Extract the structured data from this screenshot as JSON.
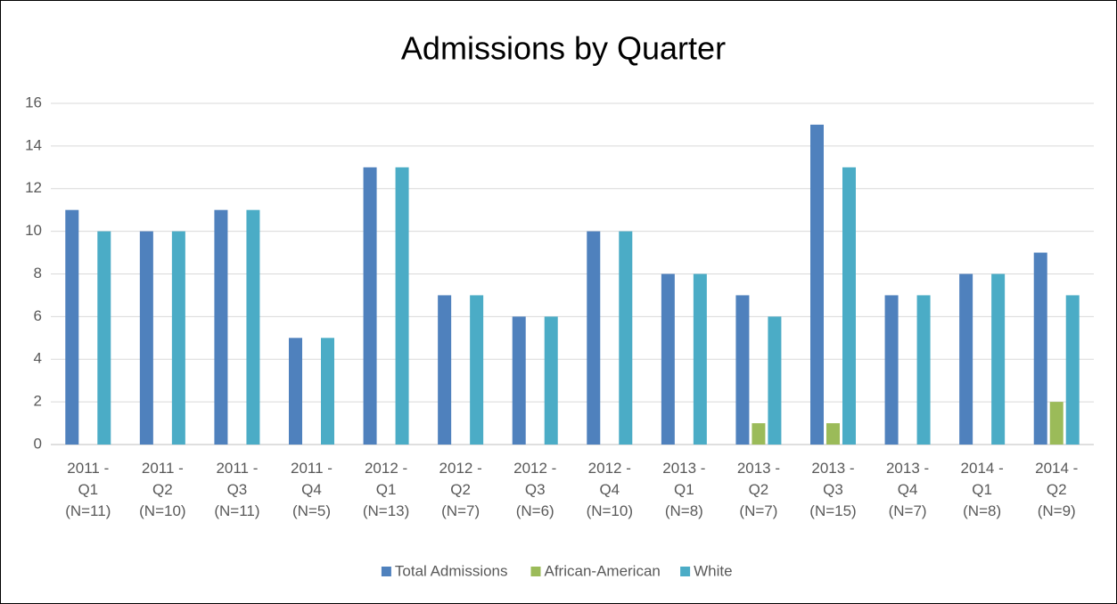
{
  "chart_data": {
    "type": "bar",
    "title": "Admissions by Quarter",
    "categories": [
      "2011 - Q1 (N=11)",
      "2011 - Q2 (N=10)",
      "2011 - Q3 (N=11)",
      "2011 - Q4 (N=5)",
      "2012 - Q1 (N=13)",
      "2012 - Q2 (N=7)",
      "2012 - Q3 (N=6)",
      "2012 - Q4 (N=10)",
      "2013 - Q1 (N=8)",
      "2013 - Q2 (N=7)",
      "2013 - Q3 (N=15)",
      "2013 - Q4 (N=7)",
      "2014 - Q1 (N=8)",
      "2014 - Q2 (N=9)"
    ],
    "series": [
      {
        "name": "Total Admissions",
        "color": "#4f81bd",
        "values": [
          11,
          10,
          11,
          5,
          13,
          7,
          6,
          10,
          8,
          7,
          15,
          7,
          8,
          9
        ]
      },
      {
        "name": "African-American",
        "color": "#9bbb59",
        "values": [
          0,
          0,
          0,
          0,
          0,
          0,
          0,
          0,
          0,
          1,
          1,
          0,
          0,
          2
        ]
      },
      {
        "name": "White",
        "color": "#4bacc6",
        "values": [
          10,
          10,
          11,
          5,
          13,
          7,
          6,
          10,
          8,
          6,
          13,
          7,
          8,
          7
        ]
      }
    ],
    "ylim": [
      0,
      16
    ],
    "yticks": [
      0,
      2,
      4,
      6,
      8,
      10,
      12,
      14,
      16
    ],
    "grid": true,
    "legend": "bottom"
  }
}
